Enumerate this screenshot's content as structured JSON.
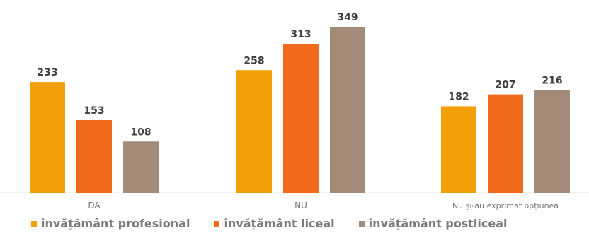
{
  "chart_data": {
    "type": "bar",
    "categories": [
      "DA",
      "NU",
      "Nu și-au exprimat opțiunea"
    ],
    "series": [
      {
        "name": "învățământ profesional",
        "color": "#F2A007",
        "values": [
          233,
          258,
          182
        ]
      },
      {
        "name": "învățământ liceal",
        "color": "#F26A1B",
        "values": [
          153,
          313,
          207
        ]
      },
      {
        "name": "învățământ postliceal",
        "color": "#A38B7A",
        "values": [
          108,
          349,
          216
        ]
      }
    ],
    "ylim": [
      0,
      349
    ],
    "grid": false,
    "legend_position": "bottom",
    "title": "",
    "xlabel": "",
    "ylabel": ""
  }
}
